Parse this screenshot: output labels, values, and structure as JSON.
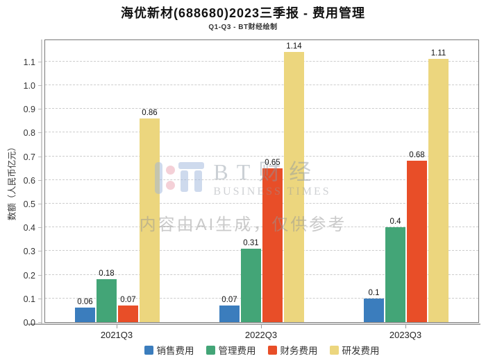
{
  "title": "海优新材(688680)2023三季报 - 费用管理",
  "subtitle": "Q1-Q3 - BT财经绘制",
  "y_axis_label": "数额（人民币亿元）",
  "watermark": {
    "brand_cn": "BT财经",
    "brand_en": "BUSINESS TIMES",
    "ai_note": "内容由AI生成，仅供参考"
  },
  "colors": {
    "sales_blue": "#3b7dbd",
    "admin_green": "#43a577",
    "finance_red": "#e84e28",
    "rd_yellow": "#ecd67e",
    "gridline": "#cccccc",
    "plot_border": "#777777"
  },
  "chart_data": {
    "type": "bar",
    "title": "海优新材(688680)2023三季报 - 费用管理",
    "subtitle": "Q1-Q3 - BT财经绘制",
    "categories": [
      "2021Q3",
      "2022Q3",
      "2023Q3"
    ],
    "series": [
      {
        "name": "销售费用",
        "color": "#3b7dbd",
        "values": [
          0.06,
          0.07,
          0.1
        ]
      },
      {
        "name": "管理费用",
        "color": "#43a577",
        "values": [
          0.18,
          0.31,
          0.4
        ]
      },
      {
        "name": "财务费用",
        "color": "#e84e28",
        "values": [
          0.07,
          0.65,
          0.68
        ]
      },
      {
        "name": "研发费用",
        "color": "#ecd67e",
        "values": [
          0.86,
          1.14,
          1.11
        ]
      }
    ],
    "xlabel": "",
    "ylabel": "数额（人民币亿元）",
    "ylim": [
      0,
      1.19
    ],
    "yticks": [
      0.0,
      0.1,
      0.2,
      0.3,
      0.4,
      0.5,
      0.6,
      0.7,
      0.8,
      0.9,
      1.0,
      1.1
    ],
    "grid": "dashed-horizontal",
    "legend_position": "bottom",
    "value_labels": true
  }
}
